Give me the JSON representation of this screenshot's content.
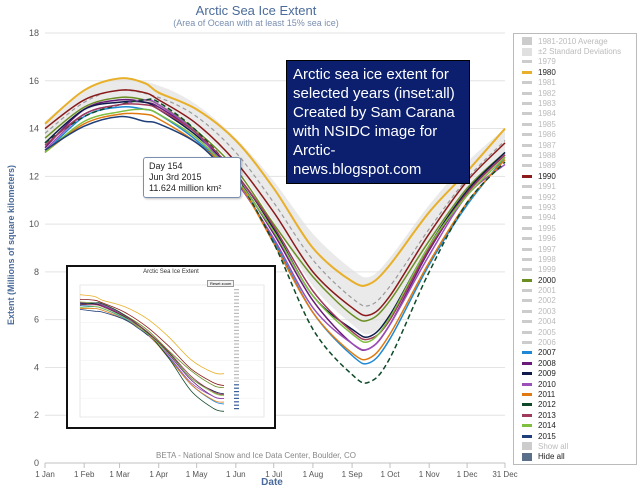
{
  "chart_data": {
    "type": "line",
    "title": "Arctic Sea Ice Extent",
    "subtitle": "(Area of Ocean with at least 15% sea ice)",
    "xlabel": "Date",
    "ylabel": "Extent (Millions of square kilometers)",
    "ylim": [
      0,
      18
    ],
    "y_ticks": [
      0,
      2,
      4,
      6,
      8,
      10,
      12,
      14,
      16,
      18
    ],
    "x_tick_labels": [
      "1 Jan",
      "1 Feb",
      "1 Mar",
      "1 Apr",
      "1 May",
      "1 Jun",
      "1 Jul",
      "1 Aug",
      "1 Sep",
      "1 Oct",
      "1 Nov",
      "1 Dec",
      "31 Dec"
    ],
    "x_tick_days": [
      1,
      32,
      60,
      91,
      121,
      152,
      182,
      213,
      244,
      274,
      305,
      335,
      365
    ],
    "grid": true,
    "legend_placement": "right",
    "series": [
      {
        "name": "1980",
        "color": "#e8b02a",
        "x": [
          1,
          32,
          60,
          80,
          91,
          121,
          152,
          182,
          213,
          244,
          258,
          274,
          305,
          335,
          365
        ],
        "values": [
          14.2,
          15.6,
          16.1,
          15.9,
          15.5,
          14.8,
          13.5,
          11.5,
          9.0,
          7.6,
          7.5,
          8.3,
          10.5,
          12.2,
          14.0
        ]
      },
      {
        "name": "1990",
        "color": "#8b1a1a",
        "x": [
          1,
          32,
          60,
          80,
          91,
          121,
          152,
          182,
          213,
          244,
          258,
          274,
          305,
          335,
          365
        ],
        "values": [
          14.0,
          15.2,
          15.6,
          15.5,
          15.2,
          14.2,
          12.6,
          10.5,
          8.0,
          6.5,
          6.2,
          7.0,
          9.6,
          11.8,
          13.4
        ]
      },
      {
        "name": "2000",
        "color": "#6b8e23",
        "x": [
          1,
          32,
          60,
          80,
          91,
          121,
          152,
          182,
          213,
          244,
          258,
          274,
          305,
          335,
          365
        ],
        "values": [
          13.6,
          14.9,
          15.3,
          15.2,
          15.0,
          13.9,
          12.3,
          10.0,
          7.8,
          6.2,
          6.0,
          6.8,
          9.3,
          11.5,
          13.0
        ]
      },
      {
        "name": "2007",
        "color": "#1e88d4",
        "x": [
          1,
          32,
          60,
          80,
          91,
          121,
          152,
          182,
          213,
          244,
          258,
          274,
          305,
          335,
          365
        ],
        "values": [
          13.0,
          14.5,
          14.9,
          14.8,
          14.6,
          13.5,
          11.9,
          9.3,
          6.3,
          4.5,
          4.2,
          5.2,
          8.3,
          10.8,
          12.8
        ]
      },
      {
        "name": "2008",
        "color": "#6a1b7a",
        "x": [
          1,
          32,
          60,
          80,
          91,
          121,
          152,
          182,
          213,
          244,
          258,
          274,
          305,
          335,
          365
        ],
        "values": [
          13.2,
          14.8,
          15.2,
          15.1,
          14.9,
          13.8,
          12.0,
          9.6,
          6.8,
          5.0,
          4.8,
          5.8,
          8.9,
          11.3,
          12.9
        ]
      },
      {
        "name": "2009",
        "color": "#0d1a4a",
        "x": [
          1,
          32,
          60,
          80,
          91,
          121,
          152,
          182,
          213,
          244,
          258,
          274,
          305,
          335,
          365
        ],
        "values": [
          13.4,
          14.8,
          15.1,
          15.1,
          14.8,
          13.7,
          12.1,
          9.8,
          7.0,
          5.6,
          5.3,
          6.2,
          9.1,
          11.4,
          13.0
        ]
      },
      {
        "name": "2010",
        "color": "#9c4fb8",
        "x": [
          1,
          32,
          60,
          80,
          91,
          121,
          152,
          182,
          213,
          244,
          258,
          274,
          305,
          335,
          365
        ],
        "values": [
          13.1,
          14.6,
          15.0,
          15.2,
          15.0,
          13.8,
          11.8,
          9.4,
          6.5,
          5.0,
          4.8,
          5.8,
          8.7,
          11.2,
          12.5
        ]
      },
      {
        "name": "2011",
        "color": "#e07a10",
        "x": [
          1,
          32,
          60,
          80,
          91,
          121,
          152,
          182,
          213,
          244,
          258,
          274,
          305,
          335,
          365
        ],
        "values": [
          13.0,
          14.2,
          14.6,
          14.6,
          14.4,
          13.4,
          11.9,
          9.2,
          6.3,
          4.6,
          4.4,
          5.4,
          8.4,
          10.9,
          12.7
        ]
      },
      {
        "name": "2012",
        "color": "#0e4a2a",
        "dash": true,
        "x": [
          1,
          32,
          60,
          80,
          91,
          121,
          152,
          182,
          213,
          244,
          258,
          274,
          305,
          335,
          365
        ],
        "values": [
          13.4,
          14.5,
          15.0,
          15.2,
          15.1,
          13.9,
          12.0,
          9.2,
          5.6,
          3.7,
          3.4,
          4.4,
          8.0,
          10.9,
          12.6
        ]
      },
      {
        "name": "2013",
        "color": "#a03a5a",
        "x": [
          1,
          32,
          60,
          80,
          91,
          121,
          152,
          182,
          213,
          244,
          258,
          274,
          305,
          335,
          365
        ],
        "values": [
          13.3,
          14.6,
          15.0,
          15.0,
          14.8,
          13.8,
          12.1,
          9.9,
          7.2,
          5.5,
          5.2,
          6.0,
          9.0,
          11.3,
          12.9
        ]
      },
      {
        "name": "2014",
        "color": "#7fbf3f",
        "x": [
          1,
          32,
          60,
          80,
          91,
          121,
          152,
          182,
          213,
          244,
          258,
          274,
          305,
          335,
          365
        ],
        "values": [
          13.0,
          14.3,
          14.7,
          14.8,
          14.6,
          13.6,
          11.9,
          9.7,
          7.0,
          5.4,
          5.1,
          6.1,
          9.1,
          11.2,
          12.8
        ]
      },
      {
        "name": "2015",
        "color": "#1f3f7a",
        "x": [
          1,
          32,
          60,
          80,
          91,
          121,
          141,
          154
        ],
        "values": [
          13.1,
          14.1,
          14.5,
          14.3,
          14.2,
          13.4,
          12.4,
          11.624
        ]
      }
    ],
    "band": {
      "name": "±2 Standard Deviations",
      "x": [
        1,
        32,
        60,
        91,
        121,
        152,
        182,
        213,
        244,
        258,
        274,
        305,
        335,
        365
      ],
      "upper": [
        14.3,
        15.6,
        16.1,
        15.8,
        15.0,
        13.6,
        11.8,
        9.6,
        8.1,
        7.8,
        8.6,
        10.8,
        12.6,
        14.0
      ],
      "lower": [
        13.3,
        14.7,
        15.1,
        14.9,
        14.0,
        12.4,
        10.1,
        7.4,
        5.8,
        5.4,
        6.2,
        8.9,
        11.3,
        13.0
      ]
    },
    "average": {
      "name": "1981-2010 Average",
      "x": [
        1,
        32,
        60,
        91,
        121,
        152,
        182,
        213,
        244,
        258,
        274,
        305,
        335,
        365
      ],
      "values": [
        13.8,
        15.1,
        15.6,
        15.3,
        14.5,
        13.0,
        10.9,
        8.5,
        6.9,
        6.6,
        7.4,
        9.8,
        11.9,
        13.5
      ]
    }
  },
  "tooltip": {
    "line1": "Day 154",
    "line2": "Jun 3rd 2015",
    "line3": "11.624 million km²"
  },
  "annotation": {
    "text": "Arctic sea ice extent for selected years (inset:all) Created by Sam Carana with NSIDC image for Arctic-news.blogspot.com"
  },
  "legend": {
    "items": [
      {
        "label": "1981-2010 Average",
        "color": "#cccccc",
        "style": "box",
        "active": false
      },
      {
        "label": "±2 Standard Deviations",
        "color": "#e0e0e0",
        "style": "box",
        "active": false
      },
      {
        "label": "1979",
        "color": "#cccccc",
        "active": false
      },
      {
        "label": "1980",
        "color": "#e8b02a",
        "active": true
      },
      {
        "label": "1981",
        "color": "#cccccc",
        "active": false
      },
      {
        "label": "1982",
        "color": "#cccccc",
        "active": false
      },
      {
        "label": "1983",
        "color": "#cccccc",
        "active": false
      },
      {
        "label": "1984",
        "color": "#cccccc",
        "active": false
      },
      {
        "label": "1985",
        "color": "#cccccc",
        "active": false
      },
      {
        "label": "1986",
        "color": "#cccccc",
        "active": false
      },
      {
        "label": "1987",
        "color": "#cccccc",
        "active": false
      },
      {
        "label": "1988",
        "color": "#cccccc",
        "active": false
      },
      {
        "label": "1989",
        "color": "#cccccc",
        "active": false
      },
      {
        "label": "1990",
        "color": "#8b1a1a",
        "active": true
      },
      {
        "label": "1991",
        "color": "#cccccc",
        "active": false
      },
      {
        "label": "1992",
        "color": "#cccccc",
        "active": false
      },
      {
        "label": "1993",
        "color": "#cccccc",
        "active": false
      },
      {
        "label": "1994",
        "color": "#cccccc",
        "active": false
      },
      {
        "label": "1995",
        "color": "#cccccc",
        "active": false
      },
      {
        "label": "1996",
        "color": "#cccccc",
        "active": false
      },
      {
        "label": "1997",
        "color": "#cccccc",
        "active": false
      },
      {
        "label": "1998",
        "color": "#cccccc",
        "active": false
      },
      {
        "label": "1999",
        "color": "#cccccc",
        "active": false
      },
      {
        "label": "2000",
        "color": "#6b8e23",
        "active": true
      },
      {
        "label": "2001",
        "color": "#cccccc",
        "active": false
      },
      {
        "label": "2002",
        "color": "#cccccc",
        "active": false
      },
      {
        "label": "2003",
        "color": "#cccccc",
        "active": false
      },
      {
        "label": "2004",
        "color": "#cccccc",
        "active": false
      },
      {
        "label": "2005",
        "color": "#cccccc",
        "active": false
      },
      {
        "label": "2006",
        "color": "#cccccc",
        "active": false
      },
      {
        "label": "2007",
        "color": "#1e88d4",
        "active": true
      },
      {
        "label": "2008",
        "color": "#6a1b7a",
        "active": true
      },
      {
        "label": "2009",
        "color": "#0d1a4a",
        "active": true
      },
      {
        "label": "2010",
        "color": "#9c4fb8",
        "active": true
      },
      {
        "label": "2011",
        "color": "#e07a10",
        "active": true
      },
      {
        "label": "2012",
        "color": "#0e4a2a",
        "active": true
      },
      {
        "label": "2013",
        "color": "#a03a5a",
        "active": true
      },
      {
        "label": "2014",
        "color": "#7fbf3f",
        "active": true
      },
      {
        "label": "2015",
        "color": "#1f3f7a",
        "active": true
      },
      {
        "label": "Show all",
        "color": "#cccccc",
        "style": "box",
        "active": false
      },
      {
        "label": "Hide all",
        "color": "#5a6f8a",
        "style": "box",
        "active": true
      }
    ]
  },
  "inset": {
    "title": "Arctic Sea Ice Extent",
    "button_label": "Reset zoom"
  },
  "footer": {
    "credit": "BETA - National Snow and Ice Data Center, Boulder, CO"
  }
}
